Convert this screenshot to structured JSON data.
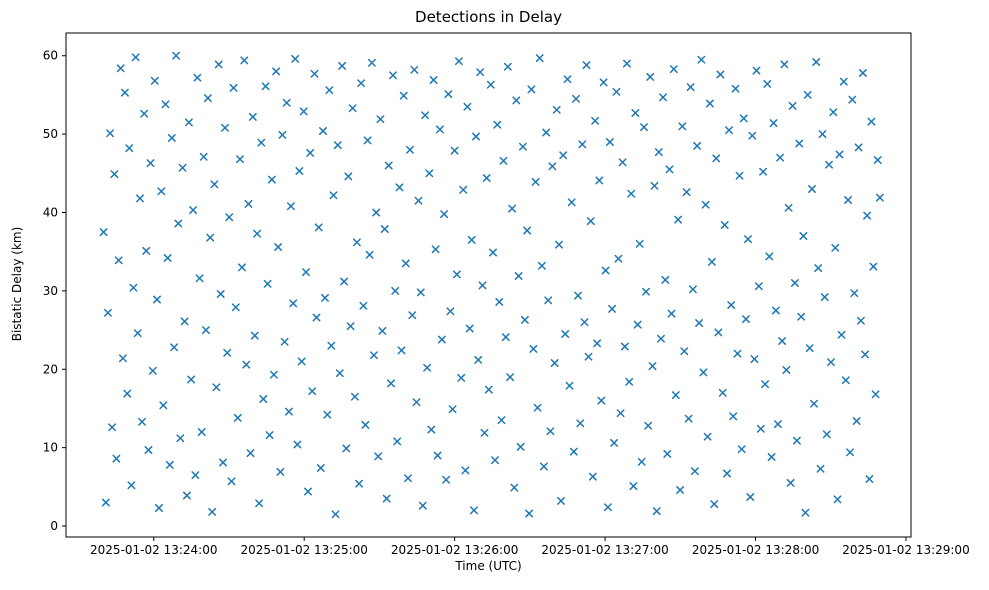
{
  "figure": {
    "title": "Detections in Delay",
    "xlabel": "Time (UTC)",
    "ylabel": "Bistatic Delay (km)"
  },
  "chart_data": {
    "type": "scatter",
    "title": "Detections in Delay",
    "xlabel": "Time (UTC)",
    "ylabel": "Bistatic Delay (km)",
    "marker": "x",
    "marker_color": "#1f77b4",
    "legend": "none",
    "grid": false,
    "x_axis": {
      "unit": "seconds after 2025-01-02 13:24:00 UTC",
      "lim": [
        -35,
        302
      ],
      "ticks": [
        {
          "value": 0,
          "label": "2025-01-02 13:24:00"
        },
        {
          "value": 60,
          "label": "2025-01-02 13:25:00"
        },
        {
          "value": 120,
          "label": "2025-01-02 13:26:00"
        },
        {
          "value": 180,
          "label": "2025-01-02 13:27:00"
        },
        {
          "value": 240,
          "label": "2025-01-02 13:28:00"
        },
        {
          "value": 300,
          "label": "2025-01-02 13:29:00"
        }
      ]
    },
    "y_axis": {
      "unit": "km",
      "lim": [
        -1.4,
        62.9
      ],
      "ticks": [
        {
          "value": 0,
          "label": "0"
        },
        {
          "value": 10,
          "label": "10"
        },
        {
          "value": 20,
          "label": "20"
        },
        {
          "value": 30,
          "label": "30"
        },
        {
          "value": 40,
          "label": "40"
        },
        {
          "value": 50,
          "label": "50"
        },
        {
          "value": 60,
          "label": "60"
        }
      ]
    },
    "points": [
      [
        -20,
        37.5
      ],
      [
        -19.1,
        3.0
      ],
      [
        -18.3,
        27.2
      ],
      [
        -17.4,
        50.1
      ],
      [
        -16.6,
        12.6
      ],
      [
        -15.7,
        44.9
      ],
      [
        -14.9,
        8.6
      ],
      [
        -14.0,
        33.9
      ],
      [
        -13.2,
        58.4
      ],
      [
        -12.3,
        21.4
      ],
      [
        -11.5,
        55.3
      ],
      [
        -10.6,
        16.9
      ],
      [
        -9.8,
        48.2
      ],
      [
        -8.9,
        5.2
      ],
      [
        -8.1,
        30.4
      ],
      [
        -7.2,
        59.8
      ],
      [
        -6.4,
        24.6
      ],
      [
        -5.5,
        41.8
      ],
      [
        -4.7,
        13.3
      ],
      [
        -3.8,
        52.6
      ],
      [
        -3.0,
        35.1
      ],
      [
        -2.1,
        9.7
      ],
      [
        -1.3,
        46.3
      ],
      [
        -0.4,
        19.8
      ],
      [
        0.4,
        56.8
      ],
      [
        1.3,
        28.9
      ],
      [
        2.1,
        2.3
      ],
      [
        3.0,
        42.7
      ],
      [
        3.8,
        15.4
      ],
      [
        4.7,
        53.8
      ],
      [
        5.5,
        34.2
      ],
      [
        6.4,
        7.8
      ],
      [
        7.2,
        49.5
      ],
      [
        8.1,
        22.8
      ],
      [
        8.9,
        60.0
      ],
      [
        9.8,
        38.6
      ],
      [
        10.6,
        11.2
      ],
      [
        11.5,
        45.7
      ],
      [
        12.3,
        26.1
      ],
      [
        13.2,
        3.9
      ],
      [
        14.0,
        51.5
      ],
      [
        14.9,
        18.7
      ],
      [
        15.7,
        40.3
      ],
      [
        16.6,
        6.5
      ],
      [
        17.4,
        57.2
      ],
      [
        18.3,
        31.6
      ],
      [
        19.1,
        12.0
      ],
      [
        19.9,
        47.1
      ],
      [
        20.8,
        25.0
      ],
      [
        21.6,
        54.6
      ],
      [
        22.5,
        36.8
      ],
      [
        23.3,
        1.8
      ],
      [
        24.2,
        43.6
      ],
      [
        25.0,
        17.7
      ],
      [
        25.9,
        58.9
      ],
      [
        26.7,
        29.6
      ],
      [
        27.6,
        8.1
      ],
      [
        28.4,
        50.8
      ],
      [
        29.3,
        22.1
      ],
      [
        30.1,
        39.4
      ],
      [
        31.0,
        5.7
      ],
      [
        31.8,
        55.9
      ],
      [
        32.7,
        27.9
      ],
      [
        33.5,
        13.8
      ],
      [
        34.4,
        46.8
      ],
      [
        35.2,
        33.0
      ],
      [
        36.1,
        59.4
      ],
      [
        36.9,
        20.6
      ],
      [
        37.8,
        41.1
      ],
      [
        38.6,
        9.3
      ],
      [
        39.5,
        52.2
      ],
      [
        40.3,
        24.3
      ],
      [
        41.2,
        37.3
      ],
      [
        42.0,
        2.9
      ],
      [
        42.9,
        48.9
      ],
      [
        43.7,
        16.2
      ],
      [
        44.6,
        56.1
      ],
      [
        45.4,
        30.9
      ],
      [
        46.2,
        11.6
      ],
      [
        47.1,
        44.2
      ],
      [
        47.9,
        19.3
      ],
      [
        48.8,
        58.0
      ],
      [
        49.6,
        35.6
      ],
      [
        50.5,
        6.9
      ],
      [
        51.3,
        49.9
      ],
      [
        52.2,
        23.5
      ],
      [
        53.0,
        54.0
      ],
      [
        53.9,
        14.6
      ],
      [
        54.7,
        40.8
      ],
      [
        55.6,
        28.4
      ],
      [
        56.4,
        59.6
      ],
      [
        57.3,
        10.4
      ],
      [
        58.1,
        45.3
      ],
      [
        59.0,
        21.0
      ],
      [
        59.8,
        52.9
      ],
      [
        60.7,
        32.4
      ],
      [
        61.5,
        4.4
      ],
      [
        62.4,
        47.6
      ],
      [
        63.2,
        17.2
      ],
      [
        64.1,
        57.7
      ],
      [
        64.9,
        26.6
      ],
      [
        65.8,
        38.1
      ],
      [
        66.6,
        7.4
      ],
      [
        67.5,
        50.4
      ],
      [
        68.3,
        29.1
      ],
      [
        69.2,
        14.2
      ],
      [
        70.0,
        55.6
      ],
      [
        70.8,
        23.0
      ],
      [
        71.7,
        42.2
      ],
      [
        72.5,
        1.5
      ],
      [
        73.4,
        48.6
      ],
      [
        74.2,
        19.5
      ],
      [
        75.1,
        58.7
      ],
      [
        75.9,
        31.2
      ],
      [
        76.8,
        9.9
      ],
      [
        77.6,
        44.6
      ],
      [
        78.5,
        25.5
      ],
      [
        79.3,
        53.3
      ],
      [
        80.2,
        16.5
      ],
      [
        81.0,
        36.2
      ],
      [
        81.9,
        5.4
      ],
      [
        82.7,
        56.5
      ],
      [
        83.6,
        28.1
      ],
      [
        84.4,
        12.9
      ],
      [
        85.3,
        49.2
      ],
      [
        86.1,
        34.6
      ],
      [
        87.0,
        59.1
      ],
      [
        87.8,
        21.8
      ],
      [
        88.7,
        40.0
      ],
      [
        89.5,
        8.9
      ],
      [
        90.4,
        51.9
      ],
      [
        91.2,
        24.9
      ],
      [
        92.1,
        37.9
      ],
      [
        92.9,
        3.5
      ],
      [
        93.7,
        46.0
      ],
      [
        94.6,
        18.2
      ],
      [
        95.4,
        57.5
      ],
      [
        96.3,
        30.0
      ],
      [
        97.1,
        10.8
      ],
      [
        98.0,
        43.2
      ],
      [
        98.8,
        22.4
      ],
      [
        99.7,
        54.9
      ],
      [
        100.5,
        33.5
      ],
      [
        101.4,
        6.1
      ],
      [
        102.2,
        48.0
      ],
      [
        103.1,
        26.9
      ],
      [
        103.9,
        58.2
      ],
      [
        104.8,
        15.8
      ],
      [
        105.6,
        41.5
      ],
      [
        106.5,
        29.8
      ],
      [
        107.3,
        2.6
      ],
      [
        108.2,
        52.4
      ],
      [
        109.0,
        20.2
      ],
      [
        109.9,
        45.0
      ],
      [
        110.7,
        12.3
      ],
      [
        111.6,
        56.9
      ],
      [
        112.4,
        35.3
      ],
      [
        113.2,
        9.0
      ],
      [
        114.1,
        50.6
      ],
      [
        114.9,
        23.8
      ],
      [
        115.8,
        39.8
      ],
      [
        116.6,
        5.9
      ],
      [
        117.5,
        55.1
      ],
      [
        118.3,
        27.4
      ],
      [
        119.2,
        14.9
      ],
      [
        120.0,
        47.9
      ],
      [
        120.9,
        32.1
      ],
      [
        121.7,
        59.3
      ],
      [
        122.6,
        18.9
      ],
      [
        123.4,
        42.9
      ],
      [
        124.3,
        7.1
      ],
      [
        125.1,
        53.5
      ],
      [
        126.0,
        25.2
      ],
      [
        126.8,
        36.5
      ],
      [
        127.7,
        2.0
      ],
      [
        128.5,
        49.7
      ],
      [
        129.4,
        21.2
      ],
      [
        130.2,
        57.9
      ],
      [
        131.1,
        30.7
      ],
      [
        131.9,
        11.9
      ],
      [
        132.8,
        44.4
      ],
      [
        133.6,
        17.4
      ],
      [
        134.4,
        56.3
      ],
      [
        135.3,
        34.9
      ],
      [
        136.1,
        8.4
      ],
      [
        137.0,
        51.2
      ],
      [
        137.8,
        28.6
      ],
      [
        138.7,
        13.5
      ],
      [
        139.5,
        46.6
      ],
      [
        140.4,
        24.1
      ],
      [
        141.2,
        58.6
      ],
      [
        142.1,
        19.0
      ],
      [
        142.9,
        40.5
      ],
      [
        143.8,
        4.9
      ],
      [
        144.6,
        54.3
      ],
      [
        145.5,
        31.9
      ],
      [
        146.3,
        10.1
      ],
      [
        147.2,
        48.4
      ],
      [
        148.0,
        26.3
      ],
      [
        148.9,
        37.7
      ],
      [
        149.7,
        1.6
      ],
      [
        150.6,
        55.7
      ],
      [
        151.4,
        22.6
      ],
      [
        152.3,
        43.9
      ],
      [
        153.1,
        15.1
      ],
      [
        153.9,
        59.7
      ],
      [
        154.8,
        33.2
      ],
      [
        155.6,
        7.6
      ],
      [
        156.5,
        50.2
      ],
      [
        157.3,
        28.8
      ],
      [
        158.2,
        12.1
      ],
      [
        159.0,
        45.9
      ],
      [
        159.9,
        20.8
      ],
      [
        160.7,
        53.1
      ],
      [
        161.6,
        35.9
      ],
      [
        162.4,
        3.2
      ],
      [
        163.3,
        47.3
      ],
      [
        164.1,
        24.5
      ],
      [
        165.0,
        57.0
      ],
      [
        165.8,
        17.9
      ],
      [
        166.7,
        41.3
      ],
      [
        167.5,
        9.5
      ],
      [
        168.4,
        54.5
      ],
      [
        169.2,
        29.4
      ],
      [
        170.1,
        13.1
      ],
      [
        170.9,
        48.7
      ],
      [
        171.8,
        26.0
      ],
      [
        172.6,
        58.8
      ],
      [
        173.4,
        21.6
      ],
      [
        174.3,
        38.9
      ],
      [
        175.1,
        6.3
      ],
      [
        176.0,
        51.7
      ],
      [
        176.8,
        23.3
      ],
      [
        177.7,
        44.1
      ],
      [
        178.5,
        16.0
      ],
      [
        179.4,
        56.6
      ],
      [
        180.2,
        32.6
      ],
      [
        181.1,
        2.4
      ],
      [
        181.9,
        49.0
      ],
      [
        182.8,
        27.7
      ],
      [
        183.6,
        10.6
      ],
      [
        184.5,
        55.4
      ],
      [
        185.3,
        34.1
      ],
      [
        186.2,
        14.4
      ],
      [
        187.0,
        46.4
      ],
      [
        187.9,
        22.9
      ],
      [
        188.7,
        59.0
      ],
      [
        189.6,
        18.4
      ],
      [
        190.4,
        42.4
      ],
      [
        191.3,
        5.1
      ],
      [
        192.1,
        52.7
      ],
      [
        193.0,
        25.7
      ],
      [
        193.8,
        36.0
      ],
      [
        194.6,
        8.2
      ],
      [
        195.5,
        50.9
      ],
      [
        196.3,
        29.9
      ],
      [
        197.2,
        12.8
      ],
      [
        198.0,
        57.3
      ],
      [
        198.9,
        20.4
      ],
      [
        199.7,
        43.4
      ],
      [
        200.6,
        1.9
      ],
      [
        201.4,
        47.7
      ],
      [
        202.3,
        23.9
      ],
      [
        203.1,
        54.7
      ],
      [
        204.0,
        31.4
      ],
      [
        204.8,
        9.2
      ],
      [
        205.7,
        45.5
      ],
      [
        206.5,
        27.1
      ],
      [
        207.4,
        58.3
      ],
      [
        208.2,
        16.7
      ],
      [
        209.1,
        39.1
      ],
      [
        209.9,
        4.6
      ],
      [
        210.8,
        51.0
      ],
      [
        211.6,
        22.3
      ],
      [
        212.5,
        42.6
      ],
      [
        213.3,
        13.7
      ],
      [
        214.1,
        56.0
      ],
      [
        215.0,
        30.2
      ],
      [
        215.8,
        7.0
      ],
      [
        216.7,
        48.5
      ],
      [
        217.5,
        25.9
      ],
      [
        218.4,
        59.5
      ],
      [
        219.2,
        19.6
      ],
      [
        220.1,
        41.0
      ],
      [
        220.9,
        11.4
      ],
      [
        221.8,
        53.9
      ],
      [
        222.6,
        33.7
      ],
      [
        223.5,
        2.8
      ],
      [
        224.3,
        46.9
      ],
      [
        225.2,
        24.7
      ],
      [
        226.0,
        57.6
      ],
      [
        226.9,
        17.0
      ],
      [
        227.7,
        38.4
      ],
      [
        228.6,
        6.7
      ],
      [
        229.4,
        50.5
      ],
      [
        230.3,
        28.2
      ],
      [
        231.1,
        14.0
      ],
      [
        232.0,
        55.8
      ],
      [
        232.8,
        22.0
      ],
      [
        233.6,
        44.7
      ],
      [
        234.5,
        9.8
      ],
      [
        235.3,
        52.0
      ],
      [
        236.2,
        26.4
      ],
      [
        237.0,
        36.6
      ],
      [
        237.9,
        3.7
      ],
      [
        238.7,
        49.8
      ],
      [
        239.6,
        21.3
      ],
      [
        240.4,
        58.1
      ],
      [
        241.3,
        30.6
      ],
      [
        242.1,
        12.4
      ],
      [
        243.0,
        45.2
      ],
      [
        243.8,
        18.1
      ],
      [
        244.7,
        56.4
      ],
      [
        245.5,
        34.4
      ],
      [
        246.4,
        8.8
      ],
      [
        247.2,
        51.4
      ],
      [
        248.1,
        27.5
      ],
      [
        248.9,
        13.0
      ],
      [
        249.8,
        47.0
      ],
      [
        250.6,
        23.6
      ],
      [
        251.5,
        58.9
      ],
      [
        252.3,
        19.9
      ],
      [
        253.2,
        40.6
      ],
      [
        254.0,
        5.5
      ],
      [
        254.8,
        53.6
      ],
      [
        255.7,
        31.0
      ],
      [
        256.5,
        10.9
      ],
      [
        257.4,
        48.8
      ],
      [
        258.2,
        26.7
      ],
      [
        259.1,
        37.0
      ],
      [
        259.9,
        1.7
      ],
      [
        260.8,
        55.0
      ],
      [
        261.6,
        22.7
      ],
      [
        262.5,
        43.0
      ],
      [
        263.3,
        15.6
      ],
      [
        264.2,
        59.2
      ],
      [
        265.0,
        32.9
      ],
      [
        265.9,
        7.3
      ],
      [
        266.7,
        50.0
      ],
      [
        267.6,
        29.2
      ],
      [
        268.4,
        11.7
      ],
      [
        269.3,
        46.1
      ],
      [
        270.1,
        20.9
      ],
      [
        271.0,
        52.8
      ],
      [
        271.8,
        35.5
      ],
      [
        272.7,
        3.4
      ],
      [
        273.5,
        47.4
      ],
      [
        274.3,
        24.4
      ],
      [
        275.2,
        56.7
      ],
      [
        276.0,
        18.6
      ],
      [
        276.9,
        41.6
      ],
      [
        277.7,
        9.4
      ],
      [
        278.6,
        54.4
      ],
      [
        279.4,
        29.7
      ],
      [
        280.3,
        13.4
      ],
      [
        281.1,
        48.3
      ],
      [
        282.0,
        26.2
      ],
      [
        282.8,
        57.8
      ],
      [
        283.7,
        21.9
      ],
      [
        284.5,
        39.6
      ],
      [
        285.4,
        6.0
      ],
      [
        286.2,
        51.6
      ],
      [
        287.0,
        33.1
      ],
      [
        287.9,
        16.8
      ],
      [
        288.7,
        46.7
      ],
      [
        289.6,
        41.9
      ]
    ]
  }
}
